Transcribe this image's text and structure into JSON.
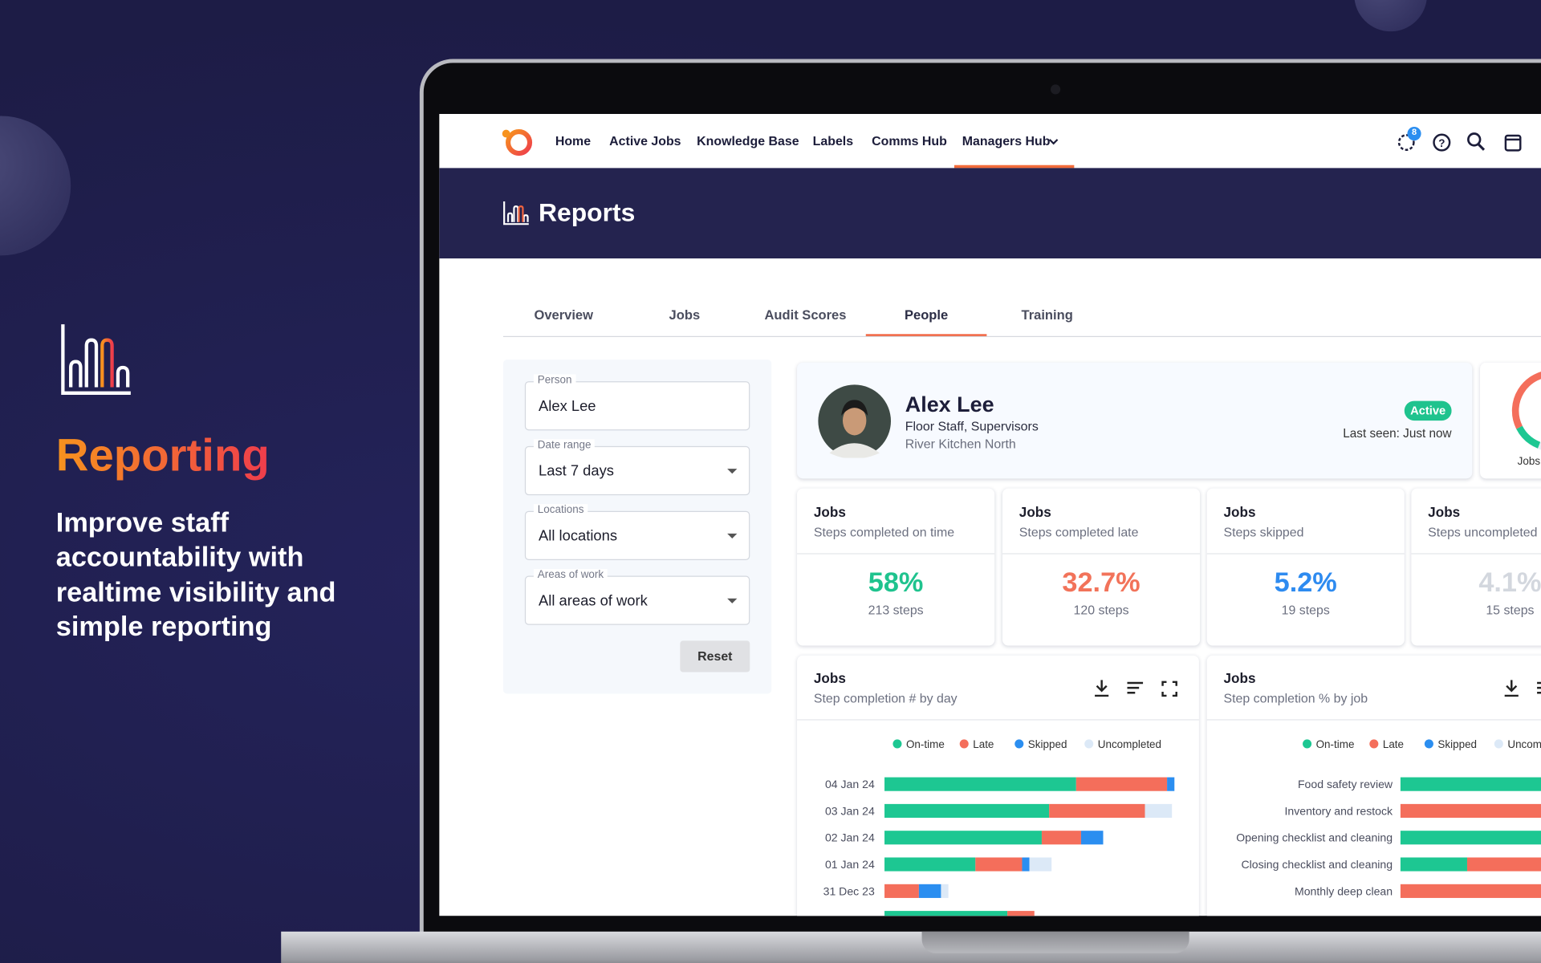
{
  "promo": {
    "title": "Reporting",
    "body": "Improve staff accountability with realtime visibility and simple reporting"
  },
  "nav": {
    "items": [
      "Home",
      "Active Jobs",
      "Knowledge Base",
      "Labels",
      "Comms Hub",
      "Managers Hub"
    ],
    "active": 5,
    "badge": "8"
  },
  "header": {
    "title": "Reports"
  },
  "tabs": {
    "items": [
      "Overview",
      "Jobs",
      "Audit Scores",
      "People",
      "Training"
    ],
    "active": 3
  },
  "filters": {
    "fields": [
      {
        "label": "Person",
        "value": "Alex Lee"
      },
      {
        "label": "Date range",
        "value": "Last 7 days"
      },
      {
        "label": "Locations",
        "value": "All locations"
      },
      {
        "label": "Areas of work",
        "value": "All areas of work"
      }
    ],
    "reset": "Reset"
  },
  "profile": {
    "name": "Alex Lee",
    "roles": "Floor Staff, Supervisors",
    "location": "River Kitchen North",
    "status": "Active",
    "last_seen": "Last seen: Just now"
  },
  "side_card": {
    "label": "Jobs"
  },
  "stats": [
    {
      "title": "Jobs",
      "subtitle": "Steps completed on time",
      "value": "58%",
      "detail": "213 steps",
      "color": "#1fc38e"
    },
    {
      "title": "Jobs",
      "subtitle": "Steps completed late",
      "value": "32.7%",
      "detail": "120 steps",
      "color": "#f2735a"
    },
    {
      "title": "Jobs",
      "subtitle": "Steps skipped",
      "value": "5.2%",
      "detail": "19 steps",
      "color": "#2e8bf0"
    },
    {
      "title": "Jobs",
      "subtitle": "Steps uncompleted",
      "value": "4.1%",
      "detail": "15 steps",
      "color": "#d3d7de"
    }
  ],
  "chart_data": [
    {
      "type": "bar",
      "orientation": "horizontal",
      "stacked": true,
      "title": "Jobs",
      "subtitle": "Step completion # by day",
      "categories": [
        "04 Jan 24",
        "03 Jan 24",
        "02 Jan 24",
        "01 Jan 24",
        "31 Dec 23",
        null
      ],
      "xlim": [
        0,
        60
      ],
      "series": [
        {
          "name": "On-time",
          "color": "#1dc792",
          "values": [
            39,
            33.5,
            32,
            18.5,
            0,
            25
          ]
        },
        {
          "name": "Late",
          "color": "#f46e5b",
          "values": [
            18.5,
            19.5,
            8,
            9.5,
            7,
            5.5
          ]
        },
        {
          "name": "Skipped",
          "color": "#2b8ef0",
          "values": [
            1.5,
            0,
            4.5,
            1.5,
            4.5,
            0
          ]
        },
        {
          "name": "Uncompleted",
          "color": "#dce9f7",
          "values": [
            0,
            5.5,
            0,
            4.5,
            1.5,
            0
          ]
        }
      ]
    },
    {
      "type": "bar",
      "orientation": "horizontal",
      "stacked": true,
      "title": "Jobs",
      "subtitle": "Step completion % by job",
      "categories": [
        "Food safety review",
        "Inventory and restock",
        "Opening checklist and cleaning",
        "Closing checklist and cleaning",
        "Monthly deep clean"
      ],
      "xlim": [
        0,
        100
      ],
      "series": [
        {
          "name": "On-time",
          "color": "#1dc792",
          "values": [
            100,
            0,
            100,
            23,
            0
          ]
        },
        {
          "name": "Late",
          "color": "#f46e5b",
          "values": [
            0,
            100,
            0,
            77,
            100
          ]
        },
        {
          "name": "Skipped",
          "color": "#2b8ef0",
          "values": [
            0,
            0,
            0,
            0,
            0
          ]
        },
        {
          "name": "Uncompleted",
          "color": "#dce9f7",
          "values": [
            0,
            0,
            0,
            0,
            0
          ]
        }
      ]
    }
  ]
}
